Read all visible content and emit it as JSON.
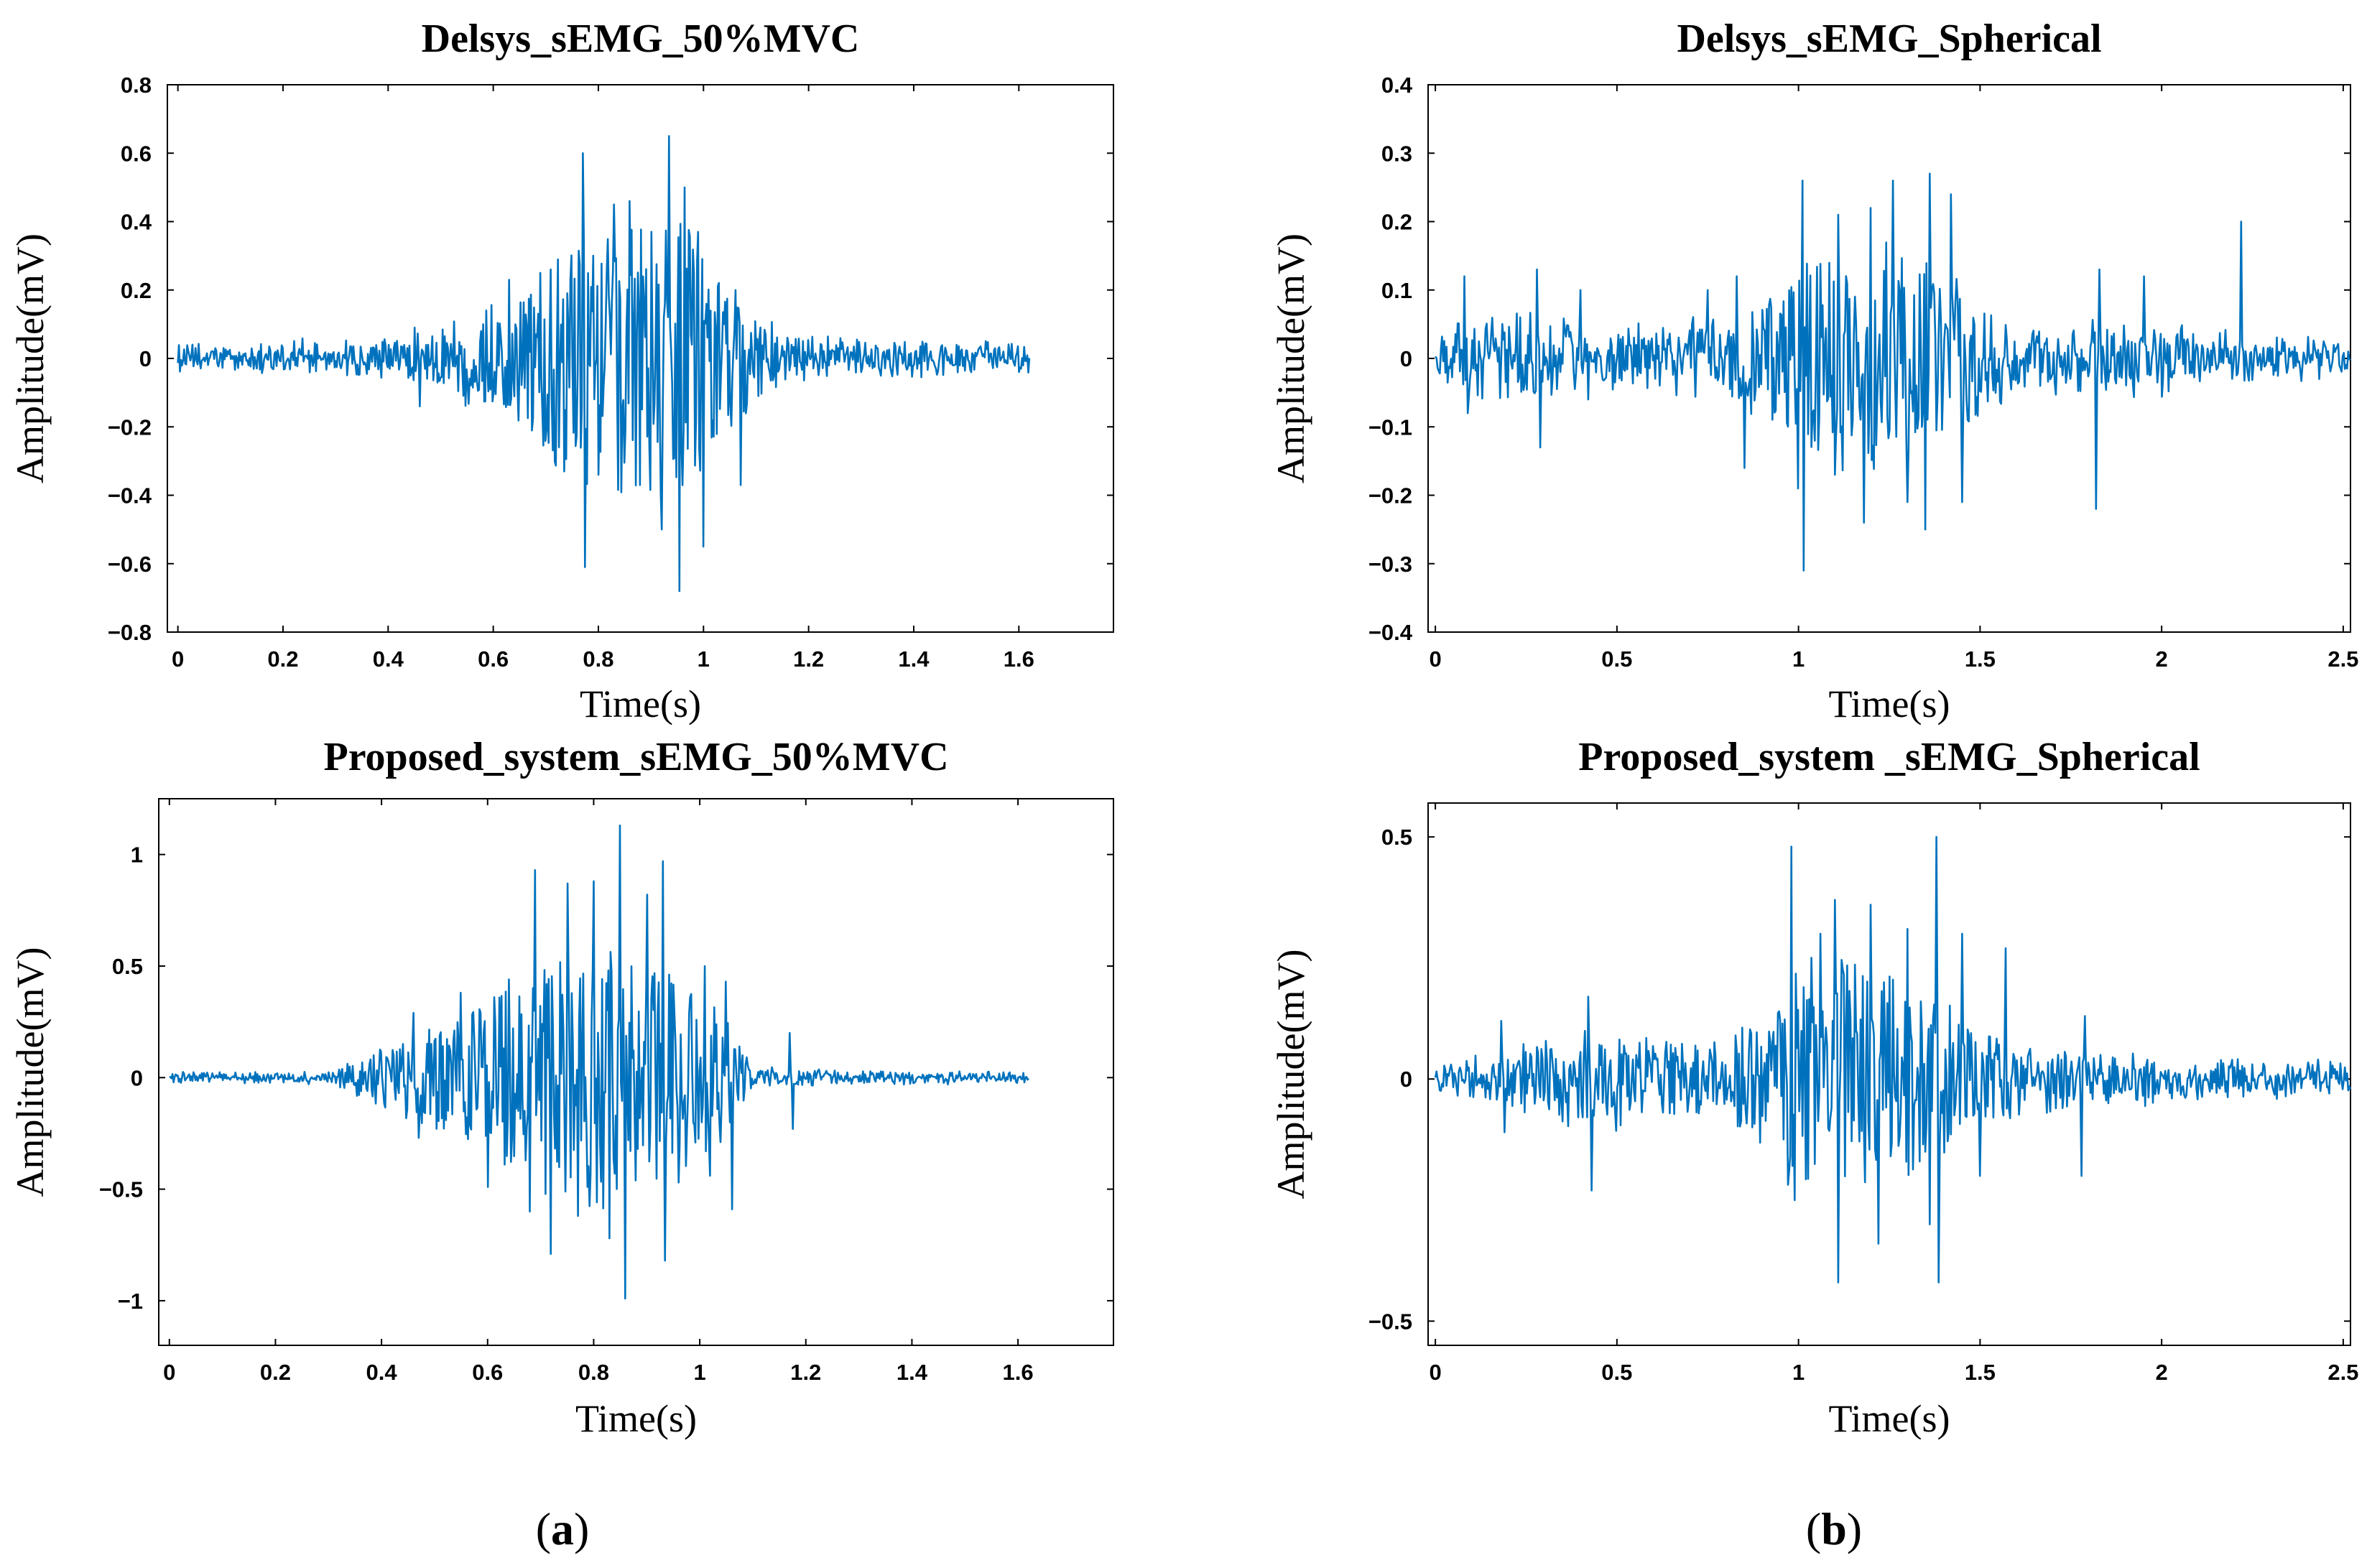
{
  "chart_data": [
    {
      "type": "line",
      "title": "Delsys_sEMG_50%MVC",
      "xlabel": "Time(s)",
      "ylabel": "Amplitude(mV)",
      "xlim": [
        -0.02,
        1.78
      ],
      "ylim": [
        -0.8,
        0.8
      ],
      "xticks": [
        0,
        0.2,
        0.4,
        0.6,
        0.8,
        1,
        1.2,
        1.4,
        1.6
      ],
      "xtick_labels": [
        "0",
        "0.2",
        "0.4",
        "0.6",
        "0.8",
        "1",
        "1.2",
        "1.4",
        "1.6"
      ],
      "yticks": [
        -0.8,
        -0.6,
        -0.4,
        -0.2,
        0,
        0.2,
        0.4,
        0.6,
        0.8
      ],
      "ytick_labels": [
        "−0.8",
        "−0.6",
        "−0.4",
        "−0.2",
        "0",
        "0.2",
        "0.4",
        "0.6",
        "0.8"
      ],
      "color": "#0072BD",
      "series": [
        {
          "name": "sEMG",
          "duration_s": 1.62,
          "noise_amplitude_mV": 0.025,
          "burst_envelope": [
            {
              "t": 0.0,
              "a": 0.02
            },
            {
              "t": 0.45,
              "a": 0.05
            },
            {
              "t": 0.55,
              "a": 0.12
            },
            {
              "t": 0.65,
              "a": 0.18
            },
            {
              "t": 0.75,
              "a": 0.35
            },
            {
              "t": 0.85,
              "a": 0.4
            },
            {
              "t": 0.95,
              "a": 0.42
            },
            {
              "t": 1.05,
              "a": 0.2
            },
            {
              "t": 1.15,
              "a": 0.06
            },
            {
              "t": 1.3,
              "a": 0.04
            },
            {
              "t": 1.62,
              "a": 0.03
            }
          ],
          "peaks": [
            {
              "t": 0.45,
              "v": 0.09
            },
            {
              "t": 0.46,
              "v": -0.14
            },
            {
              "t": 0.58,
              "v": 0.1
            },
            {
              "t": 0.6,
              "v": -0.1
            },
            {
              "t": 0.63,
              "v": 0.23
            },
            {
              "t": 0.69,
              "v": 0.25
            },
            {
              "t": 0.71,
              "v": 0.26
            },
            {
              "t": 0.77,
              "v": 0.6
            },
            {
              "t": 0.775,
              "v": -0.61
            },
            {
              "t": 0.8,
              "v": -0.34
            },
            {
              "t": 0.83,
              "v": 0.45
            },
            {
              "t": 0.86,
              "v": 0.46
            },
            {
              "t": 0.88,
              "v": -0.37
            },
            {
              "t": 0.9,
              "v": 0.37
            },
            {
              "t": 0.92,
              "v": -0.5
            },
            {
              "t": 0.935,
              "v": 0.65
            },
            {
              "t": 0.955,
              "v": -0.68
            },
            {
              "t": 0.965,
              "v": 0.5
            },
            {
              "t": 0.99,
              "v": 0.37
            },
            {
              "t": 1.0,
              "v": -0.55
            },
            {
              "t": 1.07,
              "v": -0.37
            },
            {
              "t": 1.06,
              "v": 0.2
            }
          ]
        }
      ]
    },
    {
      "type": "line",
      "title": "Delsys_sEMG_Spherical",
      "xlabel": "Time(s)",
      "ylabel": "Amplitude(mV)",
      "xlim": [
        -0.02,
        2.52
      ],
      "ylim": [
        -0.4,
        0.4
      ],
      "xticks": [
        0,
        0.5,
        1,
        1.5,
        2,
        2.5
      ],
      "xtick_labels": [
        "0",
        "0.5",
        "1",
        "1.5",
        "2",
        "2.5"
      ],
      "yticks": [
        -0.4,
        -0.3,
        -0.2,
        -0.1,
        0,
        0.1,
        0.2,
        0.3,
        0.4
      ],
      "ytick_labels": [
        "−0.4",
        "−0.3",
        "−0.2",
        "−0.1",
        "0",
        "0.1",
        "0.2",
        "0.3",
        "0.4"
      ],
      "color": "#0072BD",
      "series": [
        {
          "name": "sEMG",
          "duration_s": 2.52,
          "noise_amplitude_mV": 0.015,
          "burst_envelope": [
            {
              "t": 0.0,
              "a": 0.02
            },
            {
              "t": 0.1,
              "a": 0.05
            },
            {
              "t": 0.3,
              "a": 0.06
            },
            {
              "t": 0.5,
              "a": 0.04
            },
            {
              "t": 0.8,
              "a": 0.05
            },
            {
              "t": 0.95,
              "a": 0.12
            },
            {
              "t": 1.1,
              "a": 0.16
            },
            {
              "t": 1.3,
              "a": 0.16
            },
            {
              "t": 1.45,
              "a": 0.1
            },
            {
              "t": 1.6,
              "a": 0.04
            },
            {
              "t": 1.9,
              "a": 0.05
            },
            {
              "t": 2.1,
              "a": 0.04
            },
            {
              "t": 2.52,
              "a": 0.015
            }
          ],
          "peaks": [
            {
              "t": 0.08,
              "v": 0.12
            },
            {
              "t": 0.09,
              "v": -0.08
            },
            {
              "t": 0.28,
              "v": 0.13
            },
            {
              "t": 0.29,
              "v": -0.13
            },
            {
              "t": 0.4,
              "v": 0.1
            },
            {
              "t": 0.75,
              "v": 0.1
            },
            {
              "t": 0.83,
              "v": 0.12
            },
            {
              "t": 0.85,
              "v": -0.16
            },
            {
              "t": 1.0,
              "v": -0.19
            },
            {
              "t": 1.01,
              "v": 0.26
            },
            {
              "t": 1.015,
              "v": -0.31
            },
            {
              "t": 1.1,
              "v": -0.17
            },
            {
              "t": 1.11,
              "v": 0.21
            },
            {
              "t": 1.18,
              "v": -0.24
            },
            {
              "t": 1.2,
              "v": 0.22
            },
            {
              "t": 1.26,
              "v": 0.26
            },
            {
              "t": 1.3,
              "v": -0.21
            },
            {
              "t": 1.35,
              "v": -0.25
            },
            {
              "t": 1.36,
              "v": 0.27
            },
            {
              "t": 1.42,
              "v": 0.24
            },
            {
              "t": 1.45,
              "v": -0.21
            },
            {
              "t": 1.82,
              "v": -0.22
            },
            {
              "t": 1.83,
              "v": 0.13
            },
            {
              "t": 1.95,
              "v": 0.12
            },
            {
              "t": 2.22,
              "v": 0.2
            }
          ]
        }
      ]
    },
    {
      "type": "line",
      "title": "Proposed_system_sEMG_50%MVC",
      "xlabel": "Time(s)",
      "ylabel": "Amplitude(mV)",
      "xlim": [
        -0.02,
        1.78
      ],
      "ylim": [
        -1.2,
        1.25
      ],
      "xticks": [
        0,
        0.2,
        0.4,
        0.6,
        0.8,
        1,
        1.2,
        1.4,
        1.6
      ],
      "xtick_labels": [
        "0",
        "0.2",
        "0.4",
        "0.6",
        "0.8",
        "1",
        "1.2",
        "1.4",
        "1.6"
      ],
      "yticks": [
        -1,
        -0.5,
        0,
        0.5,
        1
      ],
      "ytick_labels": [
        "−1",
        "−0.5",
        "0",
        "0.5",
        "1"
      ],
      "color": "#0072BD",
      "series": [
        {
          "name": "sEMG",
          "duration_s": 1.62,
          "noise_amplitude_mV": 0.015,
          "burst_envelope": [
            {
              "t": 0.0,
              "a": 0.01
            },
            {
              "t": 0.28,
              "a": 0.02
            },
            {
              "t": 0.35,
              "a": 0.08
            },
            {
              "t": 0.45,
              "a": 0.2
            },
            {
              "t": 0.55,
              "a": 0.3
            },
            {
              "t": 0.65,
              "a": 0.45
            },
            {
              "t": 0.75,
              "a": 0.55
            },
            {
              "t": 0.85,
              "a": 0.6
            },
            {
              "t": 0.95,
              "a": 0.45
            },
            {
              "t": 1.05,
              "a": 0.3
            },
            {
              "t": 1.1,
              "a": 0.04
            },
            {
              "t": 1.3,
              "a": 0.02
            },
            {
              "t": 1.62,
              "a": 0.015
            }
          ],
          "peaks": [
            {
              "t": 0.46,
              "v": 0.29
            },
            {
              "t": 0.47,
              "v": -0.27
            },
            {
              "t": 0.55,
              "v": 0.38
            },
            {
              "t": 0.6,
              "v": -0.49
            },
            {
              "t": 0.64,
              "v": 0.44
            },
            {
              "t": 0.68,
              "v": -0.6
            },
            {
              "t": 0.69,
              "v": 0.93
            },
            {
              "t": 0.72,
              "v": -0.79
            },
            {
              "t": 0.75,
              "v": 0.87
            },
            {
              "t": 0.77,
              "v": -0.62
            },
            {
              "t": 0.8,
              "v": 0.88
            },
            {
              "t": 0.83,
              "v": -0.72
            },
            {
              "t": 0.85,
              "v": 1.13
            },
            {
              "t": 0.86,
              "v": -0.99
            },
            {
              "t": 0.9,
              "v": 0.82
            },
            {
              "t": 0.93,
              "v": 0.97
            },
            {
              "t": 0.935,
              "v": -0.82
            },
            {
              "t": 0.96,
              "v": -0.47
            },
            {
              "t": 1.01,
              "v": 0.5
            },
            {
              "t": 1.02,
              "v": -0.44
            },
            {
              "t": 1.05,
              "v": 0.43
            },
            {
              "t": 1.06,
              "v": -0.59
            },
            {
              "t": 1.17,
              "v": 0.2
            },
            {
              "t": 1.175,
              "v": -0.23
            }
          ]
        }
      ]
    },
    {
      "type": "line",
      "title": "Proposed_system _sEMG_Spherical",
      "xlabel": "Time(s)",
      "ylabel": "Amplitude(mV)",
      "xlim": [
        -0.02,
        2.52
      ],
      "ylim": [
        -0.55,
        0.57
      ],
      "xticks": [
        0,
        0.5,
        1,
        1.5,
        2,
        2.5
      ],
      "xtick_labels": [
        "0",
        "0.5",
        "1",
        "1.5",
        "2",
        "2.5"
      ],
      "yticks": [
        -0.5,
        0,
        0.5
      ],
      "ytick_labels": [
        "−0.5",
        "0",
        "0.5"
      ],
      "color": "#0072BD",
      "series": [
        {
          "name": "sEMG",
          "duration_s": 2.52,
          "noise_amplitude_mV": 0.02,
          "burst_envelope": [
            {
              "t": 0.0,
              "a": 0.02
            },
            {
              "t": 0.18,
              "a": 0.04
            },
            {
              "t": 0.3,
              "a": 0.08
            },
            {
              "t": 0.45,
              "a": 0.1
            },
            {
              "t": 0.6,
              "a": 0.08
            },
            {
              "t": 0.8,
              "a": 0.06
            },
            {
              "t": 0.95,
              "a": 0.2
            },
            {
              "t": 1.1,
              "a": 0.26
            },
            {
              "t": 1.3,
              "a": 0.22
            },
            {
              "t": 1.45,
              "a": 0.12
            },
            {
              "t": 1.6,
              "a": 0.07
            },
            {
              "t": 1.8,
              "a": 0.05
            },
            {
              "t": 2.1,
              "a": 0.03
            },
            {
              "t": 2.52,
              "a": 0.02
            }
          ],
          "peaks": [
            {
              "t": 0.18,
              "v": 0.12
            },
            {
              "t": 0.19,
              "v": -0.11
            },
            {
              "t": 0.42,
              "v": 0.17
            },
            {
              "t": 0.43,
              "v": -0.23
            },
            {
              "t": 0.98,
              "v": 0.48
            },
            {
              "t": 0.99,
              "v": -0.25
            },
            {
              "t": 1.06,
              "v": 0.3
            },
            {
              "t": 1.1,
              "v": 0.37
            },
            {
              "t": 1.11,
              "v": -0.42
            },
            {
              "t": 1.2,
              "v": 0.36
            },
            {
              "t": 1.22,
              "v": -0.34
            },
            {
              "t": 1.3,
              "v": 0.31
            },
            {
              "t": 1.36,
              "v": -0.3
            },
            {
              "t": 1.38,
              "v": 0.5
            },
            {
              "t": 1.385,
              "v": -0.42
            },
            {
              "t": 1.45,
              "v": 0.3
            },
            {
              "t": 1.5,
              "v": -0.2
            },
            {
              "t": 1.57,
              "v": 0.27
            },
            {
              "t": 1.78,
              "v": -0.2
            },
            {
              "t": 1.79,
              "v": 0.13
            }
          ]
        }
      ]
    }
  ],
  "subfigure_labels": {
    "a": {
      "open": "(",
      "letter": "a",
      "close": ")"
    },
    "b": {
      "open": "(",
      "letter": "b",
      "close": ")"
    }
  }
}
